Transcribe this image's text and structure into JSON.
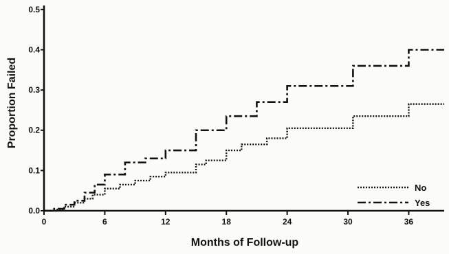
{
  "chart_data": {
    "type": "line",
    "step": true,
    "title": "",
    "xlabel": "Months of Follow-up",
    "ylabel": "Proportion Failed",
    "xlim": [
      0,
      39.5
    ],
    "ylim": [
      0,
      0.51
    ],
    "x_ticks": [
      0,
      6,
      12,
      18,
      24,
      30,
      36
    ],
    "x_tick_labels": [
      "0",
      "6",
      "12",
      "18",
      "24",
      "30",
      "36"
    ],
    "y_ticks": [
      0.0,
      0.1,
      0.2,
      0.3,
      0.4,
      0.5
    ],
    "y_tick_labels": [
      "0.0",
      "0.1",
      "0.2",
      "0.3",
      "0.4",
      "0.5"
    ],
    "grid": false,
    "legend_position": "bottom-right",
    "series": [
      {
        "name": "No",
        "style": "dotted",
        "color": "#111111",
        "x": [
          0,
          1.2,
          2,
          3,
          4,
          4.8,
          6,
          7.5,
          9,
          10.5,
          12,
          15,
          16,
          18,
          19.5,
          22,
          24,
          26,
          28,
          30.5,
          36,
          39.5
        ],
        "y": [
          0,
          0.003,
          0.01,
          0.02,
          0.03,
          0.04,
          0.055,
          0.065,
          0.075,
          0.085,
          0.095,
          0.115,
          0.125,
          0.15,
          0.165,
          0.18,
          0.205,
          0.205,
          0.205,
          0.235,
          0.265,
          0.265
        ]
      },
      {
        "name": "Yes",
        "style": "dash-dot",
        "color": "#111111",
        "x": [
          0,
          1,
          2,
          3,
          4,
          5,
          6,
          8,
          10,
          12,
          15,
          18,
          21,
          24,
          30.5,
          36,
          39.5
        ],
        "y": [
          0,
          0.005,
          0.015,
          0.025,
          0.045,
          0.065,
          0.09,
          0.12,
          0.13,
          0.15,
          0.2,
          0.235,
          0.27,
          0.31,
          0.36,
          0.4,
          0.4
        ]
      }
    ]
  }
}
